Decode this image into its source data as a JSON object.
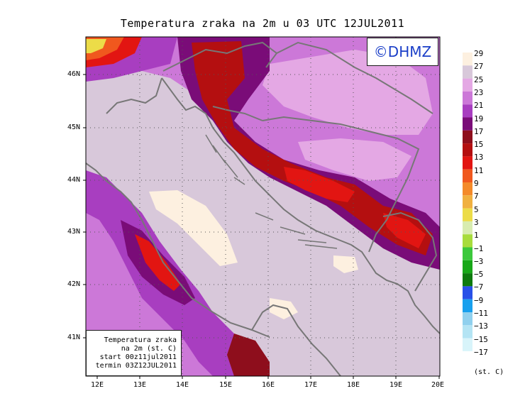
{
  "title": "Temperatura zraka na 2m u 03 UTC 12JUL2011",
  "logo": "©DHMZ",
  "info": {
    "line1": "Temperatura zraka",
    "line2": "na 2m (st. C)",
    "line3": "start 00z11jul2011",
    "line4": "termin 03Z12JUL2011"
  },
  "axes": {
    "lat_labels": [
      "46N",
      "45N",
      "44N",
      "43N",
      "42N",
      "41N"
    ],
    "lon_labels": [
      "12E",
      "13E",
      "14E",
      "15E",
      "16E",
      "17E",
      "18E",
      "19E",
      "20E"
    ]
  },
  "legend": {
    "unit": "(st. C)",
    "labels": [
      "29",
      "27",
      "25",
      "23",
      "21",
      "19",
      "17",
      "15",
      "13",
      "11",
      "9",
      "7",
      "5",
      "3",
      "1",
      "−1",
      "−3",
      "−5",
      "−7",
      "−9",
      "−11",
      "−13",
      "−15",
      "−17"
    ],
    "colors": [
      "#fdf0e0",
      "#d8c8da",
      "#e4a8e4",
      "#cc78d8",
      "#a83ec0",
      "#7a0c78",
      "#8e0e1c",
      "#b40f10",
      "#e21512",
      "#f0581e",
      "#f48a2a",
      "#f0b040",
      "#ecdc48",
      "#d8ecb0",
      "#a8dc3c",
      "#3cc83c",
      "#18a818",
      "#0e7a0e",
      "#2850e8",
      "#18a0ee",
      "#90d0ee",
      "#b4e4f4",
      "#d8f4fa",
      "#ffffff"
    ]
  },
  "colors": {
    "coast": "#777777",
    "border": "#777777"
  }
}
